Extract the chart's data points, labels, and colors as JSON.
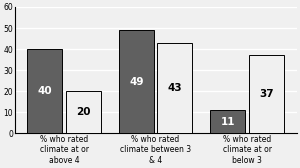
{
  "categories": [
    "% who rated\nclimate at or\nabove 4",
    "% who rated\nclimate between 3\n& 4",
    "% who rated\nclimate at or\nbelow 3"
  ],
  "series1_values": [
    40,
    49,
    11
  ],
  "series2_values": [
    20,
    43,
    37
  ],
  "series1_color": "#606060",
  "series2_color": "#f0f0f0",
  "bar_edge_color": "#000000",
  "ylim": [
    0,
    60
  ],
  "yticks": [
    0,
    10,
    20,
    30,
    40,
    50,
    60
  ],
  "bar_width": 0.38,
  "tick_label_fontsize": 5.5,
  "value_label_fontsize": 7.5,
  "background_color": "#f0f0f0",
  "plot_bg_color": "#f0f0f0",
  "grid_color": "#ffffff",
  "bar_gap": 0.04
}
